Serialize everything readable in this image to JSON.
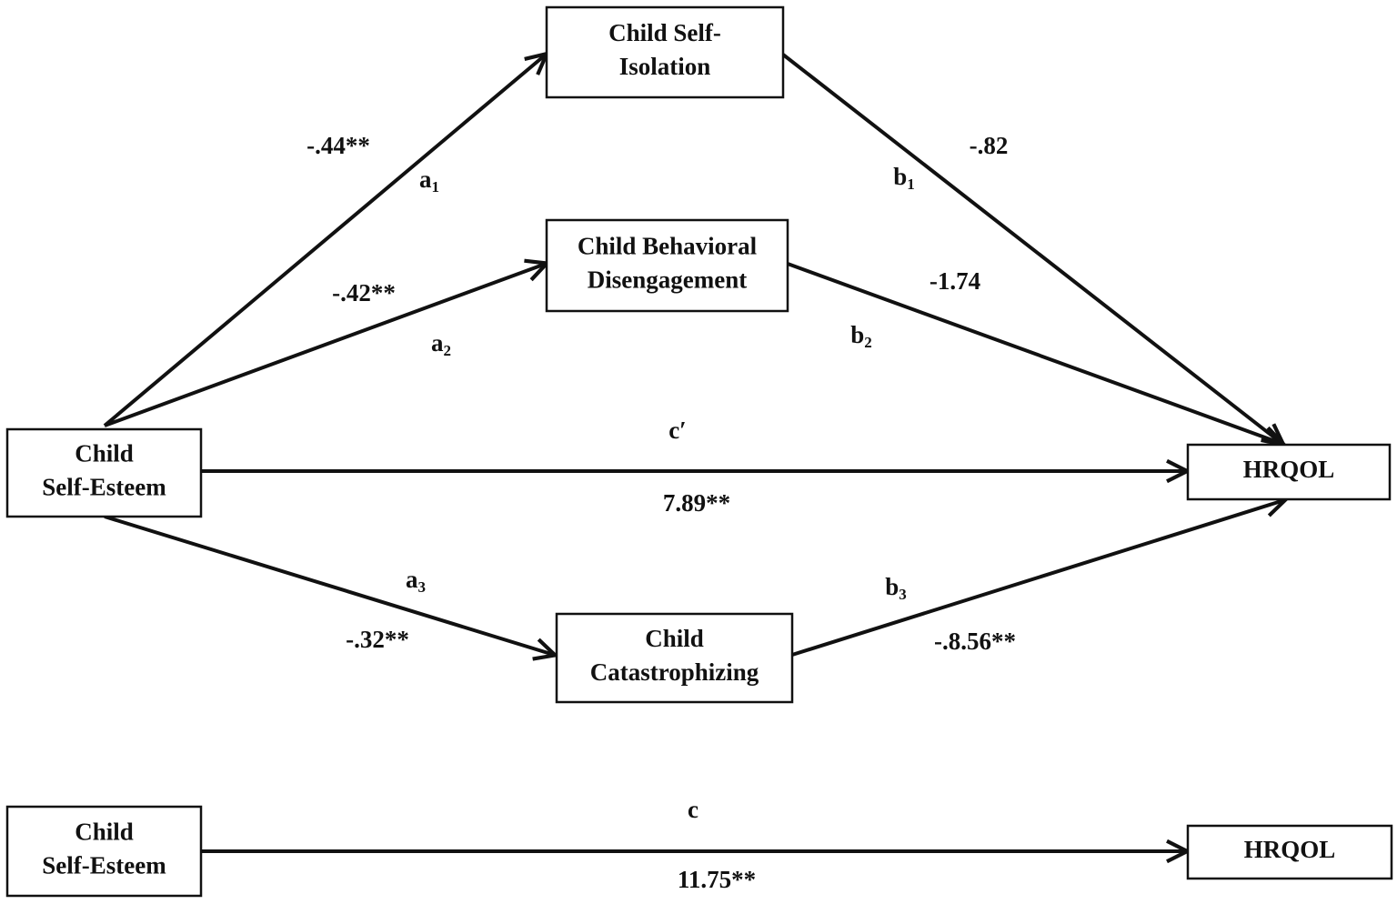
{
  "nodes": [
    {
      "lines": [
        "Child Self-",
        "Isolation"
      ]
    },
    {
      "lines": [
        "Child Behavioral",
        "Disengagement"
      ]
    },
    {
      "lines": [
        "Child",
        "Self-Esteem"
      ]
    },
    {
      "lines": [
        "HRQOL"
      ]
    },
    {
      "lines": [
        "Child",
        "Catastrophizing"
      ]
    },
    {
      "lines": [
        "Child",
        "Self-Esteem"
      ]
    },
    {
      "lines": [
        "HRQOL"
      ]
    }
  ],
  "edges": [
    {
      "letter": "a",
      "sub": "1",
      "coef": "-.44**"
    },
    {
      "letter": "a",
      "sub": "2",
      "coef": "-.42**"
    },
    {
      "letter": "c′",
      "coef": "7.89**"
    },
    {
      "letter": "a",
      "sub": "3",
      "coef": "-.32**"
    },
    {
      "letter": "b",
      "sub": "1",
      "coef": "-.82"
    },
    {
      "letter": "b",
      "sub": "2",
      "coef": "-1.74"
    },
    {
      "letter": "b",
      "sub": "3",
      "coef": "-.8.56**"
    },
    {
      "letter": "c",
      "coef": "11.75**"
    }
  ]
}
